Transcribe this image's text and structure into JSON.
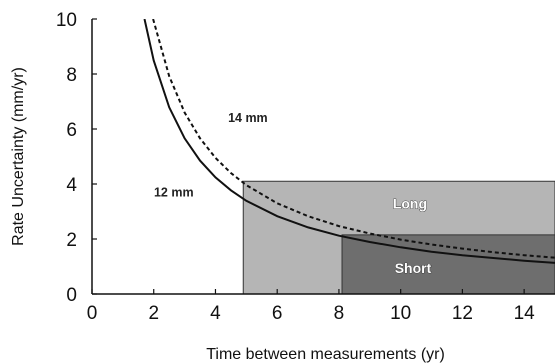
{
  "chart_data": {
    "type": "line",
    "xlabel": "Time between measurements (yr)",
    "ylabel": "Rate Uncertainty (mm/yr)",
    "xlim": [
      0,
      15
    ],
    "ylim": [
      0,
      10
    ],
    "xticks": [
      0,
      2,
      4,
      6,
      8,
      10,
      12,
      14
    ],
    "yticks": [
      0,
      2,
      4,
      6,
      8,
      10
    ],
    "series": [
      {
        "name": "12 mm",
        "style": "solid",
        "color": "#111111",
        "x": [
          1.7,
          2,
          2.5,
          3,
          3.5,
          4,
          4.5,
          5,
          6,
          7,
          8,
          9,
          10,
          11,
          12,
          13,
          14,
          15
        ],
        "y": [
          10,
          8.49,
          6.79,
          5.66,
          4.85,
          4.24,
          3.77,
          3.39,
          2.83,
          2.42,
          2.12,
          1.89,
          1.7,
          1.54,
          1.41,
          1.31,
          1.21,
          1.13
        ]
      },
      {
        "name": "14 mm",
        "style": "dashed",
        "color": "#111111",
        "x": [
          1.98,
          2.5,
          3,
          3.5,
          4,
          4.5,
          5,
          6,
          7,
          8,
          9,
          10,
          11,
          12,
          13,
          14,
          15
        ],
        "y": [
          10,
          7.92,
          6.6,
          5.66,
          4.95,
          4.4,
          3.96,
          3.3,
          2.83,
          2.47,
          2.2,
          1.98,
          1.8,
          1.65,
          1.52,
          1.41,
          1.32
        ]
      }
    ],
    "regions": [
      {
        "name": "Long",
        "x": [
          4.9,
          15
        ],
        "y": [
          0,
          4.1
        ],
        "color": "#b5b5b5"
      },
      {
        "name": "Short",
        "x": [
          8.1,
          15
        ],
        "y": [
          0,
          2.15
        ],
        "color": "#6e6e6e"
      }
    ],
    "annotations": [
      {
        "text": "14 mm",
        "x": 5.05,
        "y": 6.25
      },
      {
        "text": "12 mm",
        "x": 2.65,
        "y": 3.55
      }
    ],
    "grid": false
  }
}
